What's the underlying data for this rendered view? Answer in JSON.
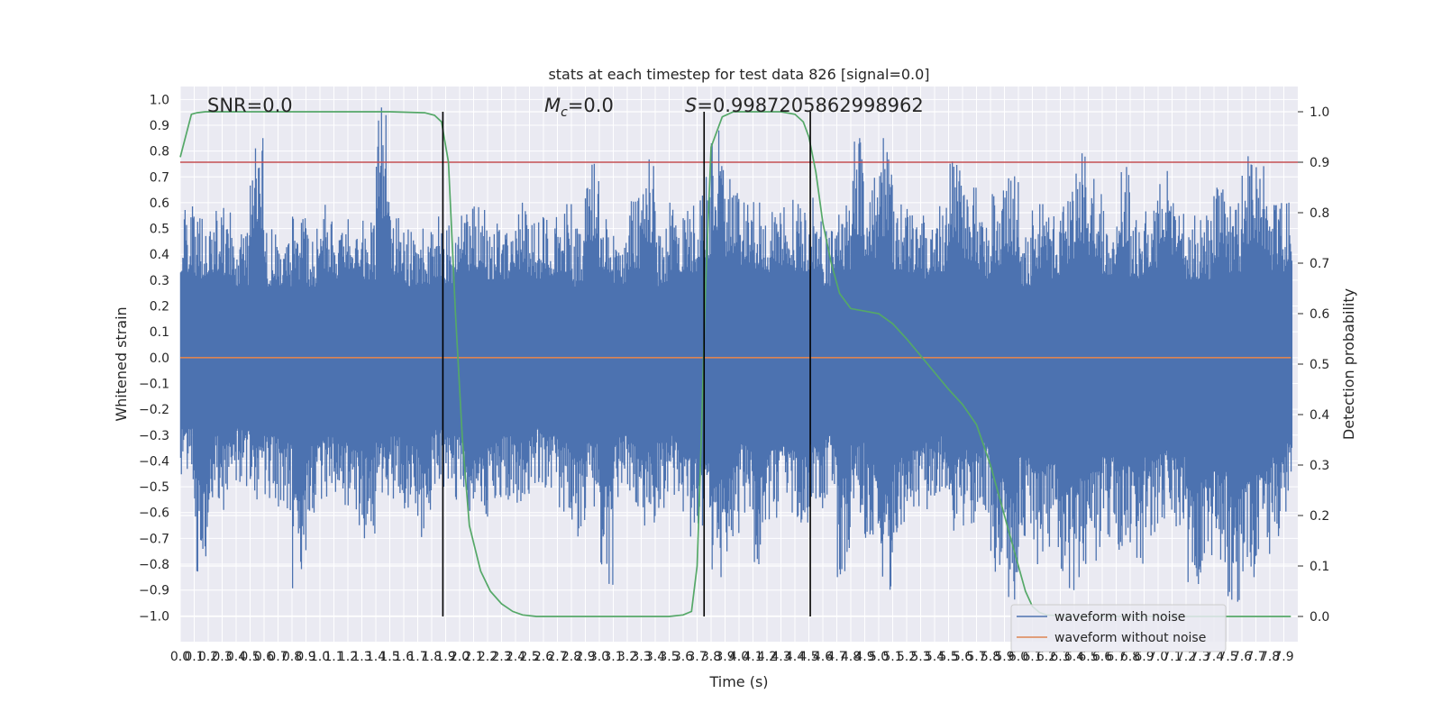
{
  "chart_data": {
    "type": "line",
    "title": "stats at each timestep for test data 826 [signal=0.0]",
    "xlabel": "Time (s)",
    "ylabel_left": "Whitened strain",
    "ylabel_right": "Detection probability",
    "xlim": [
      0.0,
      8.0
    ],
    "ylim_left": [
      -1.1,
      1.05
    ],
    "ylim_right": [
      -0.05,
      1.05
    ],
    "grid": true,
    "legend_position": "lower-right",
    "annotations": {
      "snr": "SNR=0.0",
      "mc_symbol": "M",
      "mc_subscript": "c",
      "mc_value": "=0.0",
      "s_symbol": "S",
      "s_value": "=0.9987205862998962"
    },
    "x_ticks": [
      "0.0",
      "0.1",
      "0.2",
      "0.3",
      "0.4",
      "0.5",
      "0.6",
      "0.7",
      "0.8",
      "0.9",
      "1.0",
      "1.1",
      "1.2",
      "1.3",
      "1.4",
      "1.5",
      "1.6",
      "1.7",
      "1.8",
      "1.9",
      "2.0",
      "2.1",
      "2.2",
      "2.3",
      "2.4",
      "2.5",
      "2.6",
      "2.7",
      "2.8",
      "2.9",
      "3.0",
      "3.1",
      "3.2",
      "3.3",
      "3.4",
      "3.5",
      "3.6",
      "3.7",
      "3.8",
      "3.9",
      "4.0",
      "4.1",
      "4.2",
      "4.3",
      "4.4",
      "4.5",
      "4.6",
      "4.7",
      "4.8",
      "4.9",
      "5.0",
      "5.1",
      "5.2",
      "5.3",
      "5.4",
      "5.5",
      "5.6",
      "5.7",
      "5.8",
      "5.9",
      "6.0",
      "6.1",
      "6.2",
      "6.3",
      "6.4",
      "6.5",
      "6.6",
      "6.7",
      "6.8",
      "6.9",
      "7.0",
      "7.1",
      "7.2",
      "7.3",
      "7.4",
      "7.5",
      "7.6",
      "7.7",
      "7.8",
      "7.9"
    ],
    "y_ticks_left": [
      "1.0",
      "0.9",
      "0.8",
      "0.7",
      "0.6",
      "0.5",
      "0.4",
      "0.3",
      "0.2",
      "0.1",
      "0.0",
      "-0.1",
      "-0.2",
      "-0.3",
      "-0.4",
      "-0.5",
      "-0.6",
      "-0.7",
      "-0.8",
      "-0.9",
      "-1.0"
    ],
    "y_ticks_right": [
      "1.0",
      "0.9",
      "0.8",
      "0.7",
      "0.6",
      "0.5",
      "0.4",
      "0.3",
      "0.2",
      "0.1",
      "0.0"
    ],
    "threshold": 0.9,
    "vertical_markers": [
      1.88,
      3.75,
      4.51
    ],
    "series": [
      {
        "name": "waveform with noise",
        "color": "#4c72b0",
        "axis": "left",
        "envelope_upper": [
          0.6,
          0.55,
          0.6,
          0.58,
          0.5,
          0.85,
          0.5,
          0.5,
          0.55,
          0.5,
          0.6,
          0.5,
          0.62,
          0.55,
          0.97,
          0.58,
          0.5,
          0.5,
          0.55,
          0.52,
          0.6,
          0.62,
          0.55,
          0.5,
          0.6,
          0.55,
          0.58,
          0.6,
          0.5,
          0.82,
          0.6,
          0.52,
          0.62,
          0.78,
          0.5,
          0.6,
          0.6,
          0.7,
          0.88,
          0.7,
          0.65,
          0.62,
          0.6,
          0.65,
          0.6,
          0.62,
          0.5,
          0.6,
          0.85,
          0.7,
          0.85,
          0.62,
          0.6,
          0.55,
          0.6,
          0.8,
          0.68,
          0.55,
          0.65,
          0.72,
          0.5,
          0.6,
          0.55,
          0.65,
          0.8,
          0.7,
          0.58,
          0.75,
          0.55,
          0.62,
          0.8,
          0.6,
          0.55,
          0.55,
          0.7,
          0.6,
          0.78,
          0.75,
          0.6,
          0.6
        ],
        "envelope_lower": [
          -0.5,
          -0.85,
          -0.55,
          -0.6,
          -0.5,
          -0.6,
          -0.55,
          -0.6,
          -0.93,
          -0.6,
          -0.55,
          -0.6,
          -0.65,
          -0.7,
          -0.6,
          -0.55,
          -0.6,
          -0.7,
          -0.5,
          -0.55,
          -0.6,
          -0.7,
          -0.6,
          -0.55,
          -0.6,
          -0.5,
          -0.55,
          -0.6,
          -0.7,
          -0.6,
          -0.9,
          -0.55,
          -0.6,
          -0.65,
          -0.6,
          -0.55,
          -0.7,
          -0.65,
          -0.85,
          -0.75,
          -0.6,
          -0.8,
          -0.65,
          -0.6,
          -0.7,
          -0.6,
          -0.55,
          -0.85,
          -0.6,
          -0.75,
          -0.95,
          -0.7,
          -0.65,
          -0.6,
          -0.55,
          -0.7,
          -0.65,
          -0.6,
          -0.85,
          -0.95,
          -0.7,
          -0.8,
          -0.75,
          -0.9,
          -0.85,
          -0.8,
          -0.7,
          -0.75,
          -0.8,
          -0.7,
          -0.65,
          -0.7,
          -0.9,
          -0.85,
          -0.8,
          -0.97,
          -0.85,
          -0.8,
          -0.7,
          -0.6
        ]
      },
      {
        "name": "waveform without noise",
        "color": "#dd8452",
        "axis": "left",
        "x": [
          0.0,
          7.95
        ],
        "y": [
          0.0,
          0.0
        ]
      },
      {
        "color": "#55a868",
        "axis": "right",
        "x": [
          0.0,
          0.08,
          0.12,
          0.18,
          0.3,
          0.5,
          1.0,
          1.5,
          1.75,
          1.82,
          1.87,
          1.92,
          1.97,
          2.02,
          2.07,
          2.15,
          2.22,
          2.3,
          2.38,
          2.45,
          2.55,
          2.8,
          3.2,
          3.5,
          3.6,
          3.66,
          3.7,
          3.73,
          3.76,
          3.8,
          3.88,
          3.96,
          4.1,
          4.3,
          4.4,
          4.46,
          4.5,
          4.55,
          4.6,
          4.66,
          4.72,
          4.8,
          4.9,
          5.0,
          5.1,
          5.2,
          5.35,
          5.5,
          5.6,
          5.7,
          5.8,
          5.9,
          6.0,
          6.05,
          6.1,
          6.15,
          6.2,
          6.3,
          6.5,
          7.0,
          7.5,
          7.95
        ],
        "y": [
          0.91,
          0.995,
          0.998,
          1.0,
          1.0,
          1.0,
          1.0,
          1.0,
          0.998,
          0.993,
          0.98,
          0.9,
          0.6,
          0.35,
          0.18,
          0.09,
          0.05,
          0.025,
          0.01,
          0.003,
          0.0,
          0.0,
          0.0,
          0.0,
          0.003,
          0.01,
          0.1,
          0.35,
          0.65,
          0.93,
          0.99,
          1.0,
          1.0,
          1.0,
          0.995,
          0.98,
          0.95,
          0.88,
          0.78,
          0.7,
          0.64,
          0.61,
          0.605,
          0.6,
          0.58,
          0.55,
          0.5,
          0.45,
          0.42,
          0.38,
          0.3,
          0.2,
          0.1,
          0.05,
          0.02,
          0.008,
          0.003,
          0.001,
          0.0,
          0.0,
          0.0,
          0.0
        ]
      },
      {
        "color": "#c44e52",
        "axis": "right",
        "x": [
          0.0,
          8.0
        ],
        "y": [
          0.9,
          0.9
        ]
      }
    ]
  }
}
